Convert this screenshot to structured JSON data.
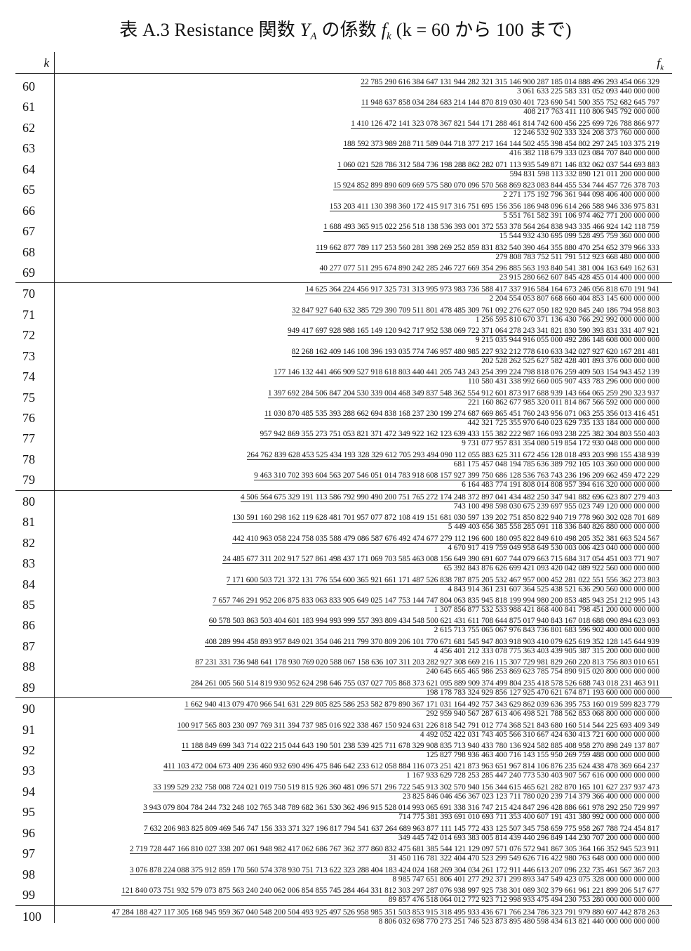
{
  "title": {
    "prefix": "表 A.3 Resistance 関数 ",
    "func": "Y",
    "func_sub": "A",
    "middle": " の係数 ",
    "coef": "f",
    "coef_sub": "k",
    "suffix": " (k = 60 から 100 まで)"
  },
  "header": {
    "k_label": "k",
    "f_label": "f",
    "f_sub": "k"
  },
  "rows": [
    {
      "k": "60",
      "num": "22 785 290 616 384 647 131 944 282 321 315 146 900 287 185 014 888 496 293 454 066 329",
      "den": "3 061 633 225 583 331 052 093 440 000 000"
    },
    {
      "k": "61",
      "num": "11 948 637 858 034 284 683 214 144 870 819 030 401 723 690 541 500 355 752 682 645 797",
      "den": "408 217 763 411 110 806 945 792 000 000"
    },
    {
      "k": "62",
      "num": "1 410 126 472 141 323 078 367 821 544 171 288 461 814 742 600 456 225 699 726 788 866 977",
      "den": "12 246 532 902 333 324 208 373 760 000 000"
    },
    {
      "k": "63",
      "num": "188 592 373 989 288 711 589 044 718 377 217 164 144 502 455 398 454 802 297 245 103 375 219",
      "den": "416 382 118 679 333 023 084 707 840 000 000"
    },
    {
      "k": "64",
      "num": "1 060 021 528 786 312 584 736 198 288 862 282 071 113 935 549 871 146 832 062 037 544 693 883",
      "den": "594 831 598 113 332 890 121 011 200 000 000"
    },
    {
      "k": "65",
      "num": "15 924 852 899 890 609 669 575 580 070 096 570 568 869 823 083 844 455 534 744 457 726 378 703",
      "den": "2 271 175 192 796 361 944 098 406 400 000 000"
    },
    {
      "k": "66",
      "num": "153 203 411 130 398 360 172 415 917 316 751 695 156 356 186 948 096 614 266 588 946 336 975 831",
      "den": "5 551 761 582 391 106 974 462 771 200 000 000"
    },
    {
      "k": "67",
      "num": "1 688 493 365 915 022 256 518 138 536 393 001 372 553 378 564 264 838 943 335 466 924 142 118 759",
      "den": "15 544 932 430 695 099 528 495 759 360 000 000"
    },
    {
      "k": "68",
      "num": "119 662 877 789 117 253 560 281 398 269 252 859 831 832 540 390 464 355 880 470 254 652 379 966 333",
      "den": "279 808 783 752 511 791 512 923 668 480 000 000"
    },
    {
      "k": "69",
      "num": "40 277 077 511 295 674 890 242 285 246 727 669 354 296 885 563 193 840 541 381 004 163 649 162 631",
      "den": "23 915 280 662 607 845 428 455 014 400 000 000"
    },
    {
      "k": "70",
      "num": "14 625 364 224 456 917 325 731 313 995 973 983 736 588 417 337 916 584 164 673 246 056 818 670 191 941",
      "den": "2 204 554 053 807 668 660 404 853 145 600 000 000"
    },
    {
      "k": "71",
      "num": "32 847 927 640 632 385 729 390 709 511 801 478 485 309 761 092 276 627 050 182 920 845 240 186 794 958 803",
      "den": "1 256 595 810 670 371 136 430 766 292 992 000 000 000"
    },
    {
      "k": "72",
      "num": "949 417 697 928 988 165 149 120 942 717 952 538 069 722 371 064 278 243 341 821 830 590 393 831 331 407 921",
      "den": "9 215 035 944 916 055 000 492 286 148 608 000 000 000"
    },
    {
      "k": "73",
      "num": "82 268 162 409 146 108 396 193 035 774 746 957 480 985 227 932 212 778 610 633 342 027 927 620 167 281 481",
      "den": "202 528 262 525 627 582 428 401 893 376 000 000 000"
    },
    {
      "k": "74",
      "num": "177 146 132 441 466 909 527 918 618 803 440 441 205 743 243 254 399 224 798 818 076 259 409 503 154 943 452 139",
      "den": "110 580 431 338 992 660 005 907 433 783 296 000 000 000"
    },
    {
      "k": "75",
      "num": "1 397 692 284 506 847 204 530 339 004 468 349 837 548 362 554 912 601 873 917 688 939 143 664 065 259 290 323 937",
      "den": "221 160 862 677 985 320 011 814 867 566 592 000 000 000"
    },
    {
      "k": "76",
      "num": "11 030 870 485 535 393 288 662 694 838 168 237 230 199 274 687 669 865 451 760 243 956 071 063 255 356 013 416 451",
      "den": "442 321 725 355 970 640 023 629 735 133 184 000 000 000"
    },
    {
      "k": "77",
      "num": "957 942 869 355 273 751 053 821 371 472 349 922 162 123 639 433 155 382 222 987 166 093 238 225 382 304 803 550 403",
      "den": "9 731 077 957 831 354 080 519 854 172 930 048 000 000 000"
    },
    {
      "k": "78",
      "num": "264 762 839 628 453 525 434 193 328 329 612 705 293 494 090 112 055 883 625 311 672 456 128 018 493 203 998 155 438 939",
      "den": "681 175 457 048 194 785 636 389 792 105 103 360 000 000 000"
    },
    {
      "k": "79",
      "num": "9 463 310 702 393 604 563 207 546 051 014 783 918 608 157 927 399 750 686 128 536 763 743 236 196 209 662 459 472 229",
      "den": "6 164 483 774 191 808 014 808 957 394 616 320 000 000 000"
    },
    {
      "k": "80",
      "num": "4 506 564 675 329 191 113 586 792 990 490 200 751 765 272 174 248 372 897 041 434 482 250 347 941 882 696 623 807 279 403",
      "den": "743 100 498 598 030 675 239 697 955 023 749 120 000 000 000"
    },
    {
      "k": "81",
      "num": "130 591 160 298 162 119 628 481 701 957 077 872 108 419 151 681 030 597 139 202 751 850 822 940 719 778 960 302 028 701 689",
      "den": "5 449 403 656 385 558 285 091 118 336 840 826 880 000 000 000"
    },
    {
      "k": "82",
      "num": "442 410 963 058 224 758 035 588 479 086 587 676 492 474 677 279 112 196 600 180 095 822 849 610 498 205 352 381 663 524 567",
      "den": "4 670 917 419 759 049 958 649 530 003 006 423 040 000 000 000"
    },
    {
      "k": "83",
      "num": "24 485 677 311 202 917 527 861 498 437 171 069 703 585 463 008 156 649 390 691 607 744 079 663 715 684 317 054 451 003 771 907",
      "den": "65 392 843 876 626 699 421 093 420 042 089 922 560 000 000 000"
    },
    {
      "k": "84",
      "num": "7 171 600 503 721 372 131 776 554 600 365 921 661 171 487 526 838 787 875 205 532 467 957 000 452 281 022 551 556 362 273 803",
      "den": "4 843 914 361 231 607 364 525 438 521 636 290 560 000 000 000"
    },
    {
      "k": "85",
      "num": "7 657 746 291 952 206 875 833 063 833 905 649 025 147 753 144 747 804 063 835 945 818 199 994 980 200 853 485 943 251 212 995 143",
      "den": "1 307 856 877 532 533 988 421 868 400 841 798 451 200 000 000 000"
    },
    {
      "k": "86",
      "num": "60 578 503 863 503 404 601 183 994 993 999 557 393 809 434 548 500 621 431 611 708 644 875 017 940 843 167 018 688 090 894 623 093",
      "den": "2 615 713 755 065 067 976 843 736 801 683 596 902 400 000 000 000"
    },
    {
      "k": "87",
      "num": "408 289 994 458 893 957 849 021 354 046 211 799 370 809 206 101 770 671 681 545 947 803 918 903 410 079 625 619 352 128 145 644 939",
      "den": "4 456 401 212 333 078 775 363 403 439 905 387 315 200 000 000 000"
    },
    {
      "k": "88",
      "num": "87 231 331 736 948 641 178 930 769 020 588 067 158 636 107 311 203 282 927 308 669 216 115 307 729 981 829 260 220 813 756 803 010 651",
      "den": "240 645 665 465 986 253 869 623 785 754 890 915 020 800 000 000 000"
    },
    {
      "k": "89",
      "num": "284 261 005 560 514 819 930 952 624 298 646 755 037 027 705 868 373 621 095 889 909 374 499 804 235 418 578 526 688 743 018 231 463 911",
      "den": "198 178 783 324 929 856 127 925 470 621 674 871 193 600 000 000 000"
    },
    {
      "k": "90",
      "num": "1 662 940 413 079 470 966 541 631 229 805 825 586 253 582 879 890 367 171 031 164 492 757 343 629 862 039 636 395 753 160 019 599 823 779",
      "den": "292 959 940 567 287 613 406 498 521 788 562 853 068 800 000 000 000"
    },
    {
      "k": "91",
      "num": "100 917 565 803 230 097 769 311 394 737 985 016 922 338 467 150 924 631 226 818 542 791 012 774 368 521 843 680 160 514 544 225 693 409 349",
      "den": "4 492 052 422 031 743 405 566 310 667 424 630 413 721 600 000 000 000"
    },
    {
      "k": "92",
      "num": "11 188 849 699 343 714 022 215 044 643 190 501 238 539 425 711 678 329 908 835 713 940 433 780 136 924 582 885 408 958 270 898 249 137 807",
      "den": "125 827 798 936 463 400 716 143 155 950 269 759 488 000 000 000 000"
    },
    {
      "k": "93",
      "num": "411 103 472 004 673 409 236 460 932 690 496 475 846 642 233 612 058 884 116 073 251 421 873 963 651 967 814 106 876 235 624 438 478 369 664 237",
      "den": "1 167 933 629 728 253 285 447 240 773 530 403 907 567 616 000 000 000 000"
    },
    {
      "k": "94",
      "num": "33 199 529 232 758 008 724 021 019 750 519 815 926 360 481 096 571 296 722 545 913 302 570 940 156 344 615 465 621 282 870 165 101 627 237 937 473",
      "den": "23 825 846 046 456 367 023 123 711 780 020 239 714 379 366 400 000 000 000"
    },
    {
      "k": "95",
      "num": "3 943 079 804 784 244 732 248 102 765 348 789 682 361 530 362 496 915 528 014 993 065 691 338 316 747 215 424 847 296 428 886 661 978 292 250 729 997",
      "den": "714 775 381 393 691 010 693 711 353 400 607 191 431 380 992 000 000 000 000"
    },
    {
      "k": "96",
      "num": "7 632 206 983 825 809 469 546 747 156 333 371 327 196 817 794 541 637 264 689 963 877 111 145 772 433 125 507 345 758 659 775 958 267 788 724 454 817",
      "den": "349 445 742 014 693 383 005 814 439 440 296 849 144 230 707 200 000 000 000"
    },
    {
      "k": "97",
      "num": "2 719 728 447 166 810 027 338 207 061 948 982 417 062 686 767 362 377 860 832 475 681 385 544 121 129 097 571 076 572 941 867 305 364 166 352 945 523 911",
      "den": "31 450 116 781 322 404 470 523 299 549 626 716 422 980 763 648 000 000 000 000"
    },
    {
      "k": "98",
      "num": "3 076 878 224 088 375 912 859 170 560 574 378 930 751 713 622 323 288 404 183 424 024 168 269 304 034 261 172 911 446 613 207 096 232 735 461 567 367 203",
      "den": "8 985 747 651 806 401 277 292 371 299 893 347 549 423 075 328 000 000 000 000"
    },
    {
      "k": "99",
      "num": "121 840 073 751 932 579 073 875 563 240 240 062 006 854 855 745 284 464 331 812 303 297 287 076 938 997 925 738 301 089 302 379 661 961 221 899 206 517 677",
      "den": "89 857 476 518 064 012 772 923 712 998 933 475 494 230 753 280 000 000 000 000"
    },
    {
      "k": "100",
      "num": "47 284 188 427 117 305 168 945 959 367 040 548 200 504 493 925 497 526 958 985 351 503 853 915 318 495 933 436 671 766 234 786 323 791 979 880 607 442 878 263",
      "den": "8 806 032 698 770 273 251 746 523 873 895 480 598 434 613 821 440 000 000 000 000"
    }
  ]
}
